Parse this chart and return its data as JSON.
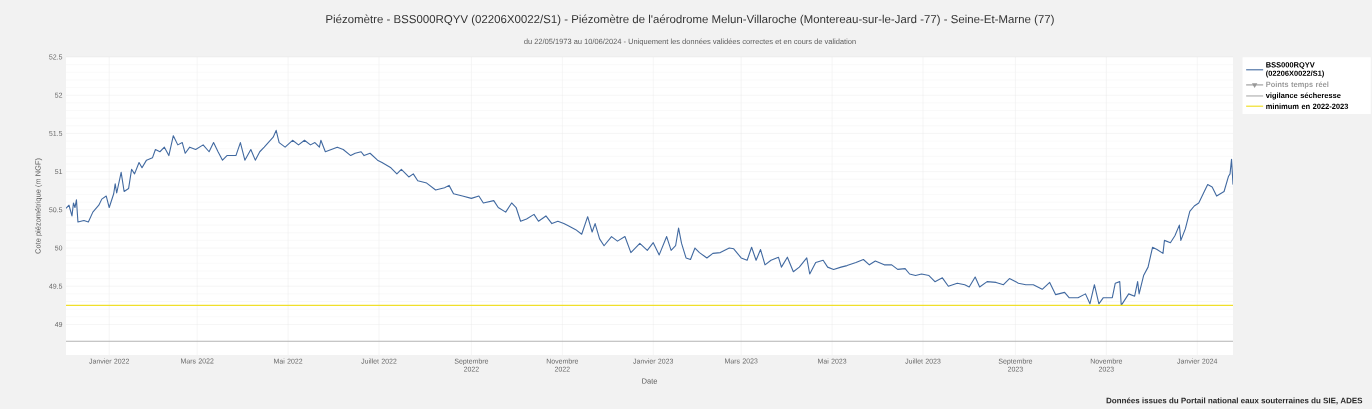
{
  "chart_data": {
    "type": "line",
    "title": "Piézomètre - BSS000RQYV (02206X0022/S1) - Piézomètre de l'aérodrome Melun-Villaroche (Montereau-sur-le-Jard -77) - Seine-Et-Marne (77)",
    "subtitle": "du 22/05/1973 au 10/06/2024 - Uniquement les données validées correctes et en cours de validation",
    "xlabel": "Date",
    "ylabel": "Cote piézométrique (m NGF)",
    "annotations": [
      "Données issues du Portail national eaux souterraines du SIE, ADES"
    ],
    "xlim": [
      "2021-12-03",
      "2024-01-25"
    ],
    "xticks": [
      {
        "value": "2022-01-01",
        "label": "Janvier 2022"
      },
      {
        "value": "2022-03-01",
        "label": "Mars 2022"
      },
      {
        "value": "2022-05-01",
        "label": "Mai 2022"
      },
      {
        "value": "2022-07-01",
        "label": "Juillet 2022"
      },
      {
        "value": "2022-09-01",
        "label": "Septembre 2022"
      },
      {
        "value": "2022-11-01",
        "label": "Novembre 2022"
      },
      {
        "value": "2023-01-01",
        "label": "Janvier 2023"
      },
      {
        "value": "2023-03-01",
        "label": "Mars 2023"
      },
      {
        "value": "2023-05-01",
        "label": "Mai 2023"
      },
      {
        "value": "2023-07-01",
        "label": "Juillet 2023"
      },
      {
        "value": "2023-09-01",
        "label": "Septembre 2023"
      },
      {
        "value": "2023-11-01",
        "label": "Novembre 2023"
      },
      {
        "value": "2024-01-01",
        "label": "Janvier 2024"
      }
    ],
    "ylim": [
      48.6,
      52.5
    ],
    "yticks": [
      49,
      49.5,
      50,
      50.5,
      51,
      51.5,
      52,
      52.5
    ],
    "grid": true,
    "legend": "top right",
    "marker": "none",
    "line_style": "solid",
    "ref_lines": [
      {
        "axis": "y",
        "value": 48.78,
        "label": "vigilance sécheresse",
        "color": "#b3b3b3"
      },
      {
        "axis": "y",
        "value": 49.25,
        "label": "minimum en 2022-2023",
        "color": "#f0df2a"
      }
    ],
    "series": [
      {
        "name": "BSS000RQYV (02206X0022/S1)",
        "color": "#4169a0",
        "x": [
          "2021-12-03",
          "2021-12-05",
          "2021-12-07",
          "2021-12-08",
          "2021-12-09",
          "2021-12-10",
          "2021-12-11",
          "2021-12-15",
          "2021-12-18",
          "2021-12-21",
          "2021-12-25",
          "2021-12-27",
          "2021-12-30",
          "2022-01-01",
          "2022-01-04",
          "2022-01-05",
          "2022-01-06",
          "2022-01-09",
          "2022-01-11",
          "2022-01-14",
          "2022-01-16",
          "2022-01-18",
          "2022-01-21",
          "2022-01-23",
          "2022-01-26",
          "2022-01-30",
          "2022-02-01",
          "2022-02-04",
          "2022-02-07",
          "2022-02-10",
          "2022-02-13",
          "2022-02-16",
          "2022-02-19",
          "2022-02-21",
          "2022-02-24",
          "2022-02-28",
          "2022-03-05",
          "2022-03-09",
          "2022-03-12",
          "2022-03-15",
          "2022-03-18",
          "2022-03-21",
          "2022-03-27",
          "2022-03-30",
          "2022-04-02",
          "2022-04-06",
          "2022-04-09",
          "2022-04-12",
          "2022-04-15",
          "2022-04-21",
          "2022-04-23",
          "2022-04-25",
          "2022-04-29",
          "2022-05-04",
          "2022-05-08",
          "2022-05-12",
          "2022-05-16",
          "2022-05-19",
          "2022-05-22",
          "2022-05-23",
          "2022-05-26",
          "2022-05-30",
          "2022-06-03",
          "2022-06-07",
          "2022-06-12",
          "2022-06-15",
          "2022-06-19",
          "2022-06-21",
          "2022-06-25",
          "2022-06-30",
          "2022-07-03",
          "2022-07-09",
          "2022-07-13",
          "2022-07-16",
          "2022-07-21",
          "2022-07-24",
          "2022-07-27",
          "2022-08-02",
          "2022-08-08",
          "2022-08-14",
          "2022-08-17",
          "2022-08-20",
          "2022-08-26",
          "2022-09-01",
          "2022-09-06",
          "2022-09-09",
          "2022-09-16",
          "2022-09-19",
          "2022-09-24",
          "2022-09-28",
          "2022-10-01",
          "2022-10-04",
          "2022-10-08",
          "2022-10-13",
          "2022-10-16",
          "2022-10-21",
          "2022-10-25",
          "2022-10-29",
          "2022-11-02",
          "2022-11-05",
          "2022-11-10",
          "2022-11-14",
          "2022-11-18",
          "2022-11-21",
          "2022-11-23",
          "2022-11-26",
          "2022-11-29",
          "2022-12-04",
          "2022-12-08",
          "2022-12-13",
          "2022-12-17",
          "2022-12-23",
          "2022-12-28",
          "2023-01-01",
          "2023-01-05",
          "2023-01-10",
          "2023-01-13",
          "2023-01-16",
          "2023-01-18",
          "2023-01-20",
          "2023-01-23",
          "2023-01-26",
          "2023-01-29",
          "2023-02-01",
          "2023-02-06",
          "2023-02-10",
          "2023-02-15",
          "2023-02-21",
          "2023-02-24",
          "2023-03-01",
          "2023-03-05",
          "2023-03-08",
          "2023-03-11",
          "2023-03-14",
          "2023-03-17",
          "2023-03-21",
          "2023-03-26",
          "2023-03-28",
          "2023-04-01",
          "2023-04-05",
          "2023-04-09",
          "2023-04-14",
          "2023-04-16",
          "2023-04-20",
          "2023-04-25",
          "2023-04-28",
          "2023-05-02",
          "2023-05-07",
          "2023-05-11",
          "2023-05-17",
          "2023-05-22",
          "2023-05-26",
          "2023-05-30",
          "2023-06-05",
          "2023-06-10",
          "2023-06-14",
          "2023-06-19",
          "2023-06-22",
          "2023-06-26",
          "2023-06-30",
          "2023-07-05",
          "2023-07-09",
          "2023-07-14",
          "2023-07-18",
          "2023-07-24",
          "2023-07-29",
          "2023-08-01",
          "2023-08-05",
          "2023-08-08",
          "2023-08-13",
          "2023-08-19",
          "2023-08-24",
          "2023-08-28",
          "2023-09-03",
          "2023-09-08",
          "2023-09-13",
          "2023-09-19",
          "2023-09-24",
          "2023-09-28",
          "2023-10-04",
          "2023-10-07",
          "2023-10-13",
          "2023-10-18",
          "2023-10-21",
          "2023-10-24",
          "2023-10-27",
          "2023-10-30",
          "2023-11-05",
          "2023-11-07",
          "2023-11-10",
          "2023-11-11",
          "2023-11-16",
          "2023-11-20",
          "2023-11-22",
          "2023-11-23",
          "2023-11-26",
          "2023-11-29",
          "2023-12-02",
          "2023-12-05",
          "2023-12-09",
          "2023-12-10",
          "2023-12-14",
          "2023-12-17",
          "2023-12-20",
          "2023-12-21",
          "2023-12-24",
          "2023-12-27",
          "2023-12-30",
          "2024-01-02",
          "2024-01-05",
          "2024-01-08",
          "2024-01-11",
          "2024-01-14",
          "2024-01-19",
          "2024-01-22",
          "2024-01-23",
          "2024-01-24",
          "2024-01-25"
        ],
        "values": [
          50.52,
          50.56,
          50.42,
          50.59,
          50.53,
          50.63,
          50.34,
          50.36,
          50.34,
          50.47,
          50.56,
          50.64,
          50.68,
          50.53,
          50.71,
          50.84,
          50.72,
          50.99,
          50.74,
          50.78,
          51.03,
          50.97,
          51.12,
          51.05,
          51.15,
          51.18,
          51.29,
          51.26,
          51.32,
          51.21,
          51.47,
          51.35,
          51.38,
          51.24,
          51.32,
          51.29,
          51.35,
          51.26,
          51.38,
          51.26,
          51.15,
          51.21,
          51.21,
          51.38,
          51.15,
          51.29,
          51.15,
          51.26,
          51.32,
          51.45,
          51.54,
          51.38,
          51.32,
          51.41,
          51.35,
          51.41,
          51.35,
          51.38,
          51.32,
          51.41,
          51.26,
          51.29,
          51.32,
          51.29,
          51.21,
          51.24,
          51.26,
          51.21,
          51.24,
          51.15,
          51.12,
          51.05,
          50.97,
          51.03,
          50.93,
          50.97,
          50.88,
          50.85,
          50.76,
          50.79,
          50.82,
          50.71,
          50.68,
          50.65,
          50.68,
          50.59,
          50.62,
          50.53,
          50.47,
          50.59,
          50.53,
          50.35,
          50.38,
          50.44,
          50.35,
          50.42,
          50.32,
          50.35,
          50.32,
          50.29,
          50.24,
          50.18,
          50.41,
          50.21,
          50.32,
          50.12,
          50.03,
          50.15,
          50.09,
          50.15,
          49.94,
          50.06,
          49.97,
          50.07,
          49.91,
          50.15,
          49.97,
          50.03,
          50.26,
          50.06,
          49.87,
          49.85,
          50.0,
          49.94,
          49.87,
          49.93,
          49.94,
          50.0,
          49.99,
          49.87,
          49.84,
          50.01,
          49.84,
          49.98,
          49.78,
          49.84,
          49.88,
          49.75,
          49.88,
          49.69,
          49.75,
          49.87,
          49.66,
          49.81,
          49.84,
          49.75,
          49.72,
          49.75,
          49.77,
          49.81,
          49.85,
          49.78,
          49.83,
          49.78,
          49.78,
          49.72,
          49.73,
          49.66,
          49.64,
          49.66,
          49.64,
          49.56,
          49.61,
          49.5,
          49.54,
          49.52,
          49.49,
          49.62,
          49.49,
          49.56,
          49.55,
          49.52,
          49.6,
          49.54,
          49.52,
          49.52,
          49.46,
          49.55,
          49.39,
          49.42,
          49.35,
          49.35,
          49.4,
          49.27,
          49.52,
          49.27,
          49.35,
          49.35,
          49.54,
          49.56,
          49.25,
          49.4,
          49.37,
          49.56,
          49.4,
          49.64,
          49.75,
          50.01,
          49.98,
          49.93,
          50.1,
          50.07,
          50.16,
          50.3,
          50.1,
          50.25,
          50.48,
          50.55,
          50.59,
          50.71,
          50.83,
          50.8,
          50.68,
          50.74,
          50.94,
          50.97,
          51.16,
          50.83
        ]
      },
      {
        "name": "Points temps réel",
        "color": "#999999"
      }
    ]
  }
}
